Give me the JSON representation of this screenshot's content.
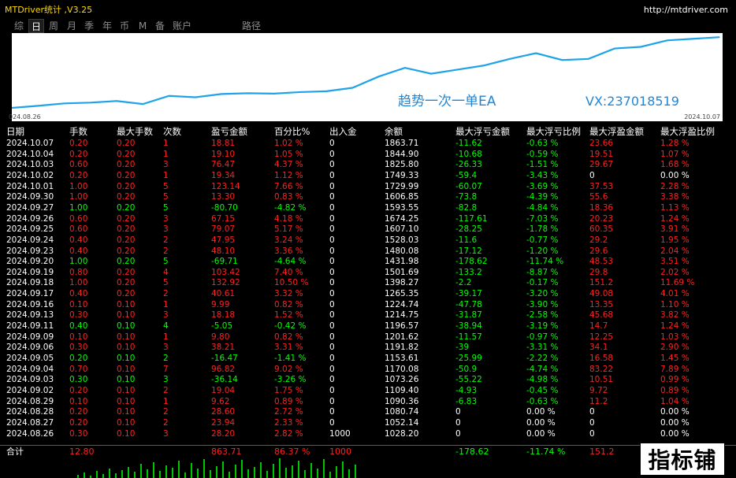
{
  "header": {
    "title": "MTDriver统计 ,V3.25",
    "url": "http://mtdriver.com"
  },
  "tabs": [
    {
      "label": "综",
      "active": false
    },
    {
      "label": "日",
      "active": true
    },
    {
      "label": "周",
      "active": false
    },
    {
      "label": "月",
      "active": false
    },
    {
      "label": "季",
      "active": false
    },
    {
      "label": "年",
      "active": false
    },
    {
      "label": "币",
      "active": false
    },
    {
      "label": "M",
      "active": false
    },
    {
      "label": "备",
      "active": false
    },
    {
      "label": "账户",
      "active": false
    },
    {
      "label": "路径",
      "active": false
    }
  ],
  "chart": {
    "watermark_left": "趋势一次一单EA",
    "watermark_right": "VX:237018519",
    "date_start": "024.08.26",
    "date_end": "2024.10.07",
    "line_color": "#1ea3e9"
  },
  "chart_data": {
    "type": "line",
    "x": [
      "2024.08.26",
      "2024.08.27",
      "2024.08.28",
      "2024.08.29",
      "2024.09.02",
      "2024.09.03",
      "2024.09.04",
      "2024.09.05",
      "2024.09.06",
      "2024.09.09",
      "2024.09.11",
      "2024.09.13",
      "2024.09.16",
      "2024.09.17",
      "2024.09.18",
      "2024.09.19",
      "2024.09.20",
      "2024.09.23",
      "2024.09.24",
      "2024.09.25",
      "2024.09.26",
      "2024.09.27",
      "2024.09.30",
      "2024.10.01",
      "2024.10.02",
      "2024.10.03",
      "2024.10.04",
      "2024.10.07"
    ],
    "values": [
      1028.2,
      1052.14,
      1080.74,
      1090.36,
      1109.4,
      1073.26,
      1170.08,
      1153.61,
      1191.82,
      1201.62,
      1196.57,
      1214.75,
      1224.74,
      1265.35,
      1398.27,
      1501.69,
      1431.98,
      1480.08,
      1528.03,
      1607.1,
      1674.25,
      1593.55,
      1606.85,
      1729.99,
      1749.33,
      1825.8,
      1844.9,
      1863.71
    ]
  },
  "table": {
    "columns": [
      "日期",
      "手数",
      "最大手数",
      "次数",
      "盈亏金额",
      "百分比%",
      "出入金",
      "余额",
      "最大浮亏金额",
      "最大浮亏比例",
      "最大浮盈金额",
      "最大浮盈比例"
    ],
    "rows": [
      [
        "2024.10.07",
        "0.20",
        "0.20",
        "1",
        "18.81",
        "1.02 %",
        "0",
        "1863.71",
        "-11.62",
        "-0.63 %",
        "23.66",
        "1.28 %"
      ],
      [
        "2024.10.04",
        "0.20",
        "0.20",
        "1",
        "19.10",
        "1.05 %",
        "0",
        "1844.90",
        "-10.68",
        "-0.59 %",
        "19.51",
        "1.07 %"
      ],
      [
        "2024.10.03",
        "0.60",
        "0.20",
        "3",
        "76.47",
        "4.37 %",
        "0",
        "1825.80",
        "-26.33",
        "-1.51 %",
        "29.67",
        "1.68 %"
      ],
      [
        "2024.10.02",
        "0.20",
        "0.20",
        "1",
        "19.34",
        "1.12 %",
        "0",
        "1749.33",
        "-59.4",
        "-3.43 %",
        "0",
        "0.00 %"
      ],
      [
        "2024.10.01",
        "1.00",
        "0.20",
        "5",
        "123.14",
        "7.66 %",
        "0",
        "1729.99",
        "-60.07",
        "-3.69 %",
        "37.53",
        "2.28 %"
      ],
      [
        "2024.09.30",
        "1.00",
        "0.20",
        "5",
        "13.30",
        "0.83 %",
        "0",
        "1606.85",
        "-73.8",
        "-4.39 %",
        "55.6",
        "3.38 %"
      ],
      [
        "2024.09.27",
        "1.00",
        "0.20",
        "5",
        "-80.70",
        "-4.82 %",
        "0",
        "1593.55",
        "-82.8",
        "-4.84 %",
        "18.36",
        "1.13 %"
      ],
      [
        "2024.09.26",
        "0.60",
        "0.20",
        "3",
        "67.15",
        "4.18 %",
        "0",
        "1674.25",
        "-117.61",
        "-7.03 %",
        "20.23",
        "1.24 %"
      ],
      [
        "2024.09.25",
        "0.60",
        "0.20",
        "3",
        "79.07",
        "5.17 %",
        "0",
        "1607.10",
        "-28.25",
        "-1.78 %",
        "60.35",
        "3.91 %"
      ],
      [
        "2024.09.24",
        "0.40",
        "0.20",
        "2",
        "47.95",
        "3.24 %",
        "0",
        "1528.03",
        "-11.6",
        "-0.77 %",
        "29.2",
        "1.95 %"
      ],
      [
        "2024.09.23",
        "0.40",
        "0.20",
        "2",
        "48.10",
        "3.36 %",
        "0",
        "1480.08",
        "-17.12",
        "-1.20 %",
        "29.6",
        "2.04 %"
      ],
      [
        "2024.09.20",
        "1.00",
        "0.20",
        "5",
        "-69.71",
        "-4.64 %",
        "0",
        "1431.98",
        "-178.62",
        "-11.74 %",
        "48.53",
        "3.51 %"
      ],
      [
        "2024.09.19",
        "0.80",
        "0.20",
        "4",
        "103.42",
        "7.40 %",
        "0",
        "1501.69",
        "-133.2",
        "-8.87 %",
        "29.8",
        "2.02 %"
      ],
      [
        "2024.09.18",
        "1.00",
        "0.20",
        "5",
        "132.92",
        "10.50 %",
        "0",
        "1398.27",
        "-2.2",
        "-0.17 %",
        "151.2",
        "11.69 %"
      ],
      [
        "2024.09.17",
        "0.40",
        "0.20",
        "2",
        "40.61",
        "3.32 %",
        "0",
        "1265.35",
        "-39.17",
        "-3.20 %",
        "49.08",
        "4.01 %"
      ],
      [
        "2024.09.16",
        "0.10",
        "0.10",
        "1",
        "9.99",
        "0.82 %",
        "0",
        "1224.74",
        "-47.78",
        "-3.90 %",
        "13.35",
        "1.10 %"
      ],
      [
        "2024.09.13",
        "0.30",
        "0.10",
        "3",
        "18.18",
        "1.52 %",
        "0",
        "1214.75",
        "-31.87",
        "-2.58 %",
        "45.68",
        "3.82 %"
      ],
      [
        "2024.09.11",
        "0.40",
        "0.10",
        "4",
        "-5.05",
        "-0.42 %",
        "0",
        "1196.57",
        "-38.94",
        "-3.19 %",
        "14.7",
        "1.24 %"
      ],
      [
        "2024.09.09",
        "0.10",
        "0.10",
        "1",
        "9.80",
        "0.82 %",
        "0",
        "1201.62",
        "-11.57",
        "-0.97 %",
        "12.25",
        "1.03 %"
      ],
      [
        "2024.09.06",
        "0.30",
        "0.10",
        "3",
        "38.21",
        "3.31 %",
        "0",
        "1191.82",
        "-39",
        "-3.31 %",
        "34.1",
        "2.90 %"
      ],
      [
        "2024.09.05",
        "0.20",
        "0.10",
        "2",
        "-16.47",
        "-1.41 %",
        "0",
        "1153.61",
        "-25.99",
        "-2.22 %",
        "16.58",
        "1.45 %"
      ],
      [
        "2024.09.04",
        "0.70",
        "0.10",
        "7",
        "96.82",
        "9.02 %",
        "0",
        "1170.08",
        "-50.9",
        "-4.74 %",
        "83.22",
        "7.89 %"
      ],
      [
        "2024.09.03",
        "0.30",
        "0.10",
        "3",
        "-36.14",
        "-3.26 %",
        "0",
        "1073.26",
        "-55.22",
        "-4.98 %",
        "10.51",
        "0.99 %"
      ],
      [
        "2024.09.02",
        "0.20",
        "0.10",
        "2",
        "19.04",
        "1.75 %",
        "0",
        "1109.40",
        "-4.93",
        "-0.45 %",
        "9.72",
        "0.89 %"
      ],
      [
        "2024.08.29",
        "0.10",
        "0.10",
        "1",
        "9.62",
        "0.89 %",
        "0",
        "1090.36",
        "-6.83",
        "-0.63 %",
        "11.2",
        "1.04 %"
      ],
      [
        "2024.08.28",
        "0.20",
        "0.10",
        "2",
        "28.60",
        "2.72 %",
        "0",
        "1080.74",
        "0",
        "0.00 %",
        "0",
        "0.00 %"
      ],
      [
        "2024.08.27",
        "0.20",
        "0.10",
        "2",
        "23.94",
        "2.33 %",
        "0",
        "1052.14",
        "0",
        "0.00 %",
        "0",
        "0.00 %"
      ],
      [
        "2024.08.26",
        "0.30",
        "0.10",
        "3",
        "28.20",
        "2.82 %",
        "1000",
        "1028.20",
        "0",
        "0.00 %",
        "0",
        "0.00 %"
      ]
    ],
    "total": [
      "合计",
      "12.80",
      "",
      "",
      "863.71",
      "86.37 %",
      "1000",
      "",
      "-178.62",
      "-11.74 %",
      "151.2",
      ""
    ]
  },
  "logo": {
    "text": "指标铺"
  },
  "colors": {
    "positive": "#00ff00",
    "negative": "#ff2020",
    "title": "#ffd900"
  }
}
